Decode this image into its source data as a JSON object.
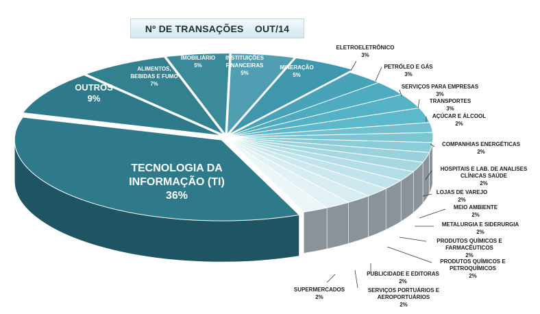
{
  "chart_data": {
    "type": "pie",
    "title": "Nº DE TRANSAÇÕES    OUT/14",
    "slices": [
      {
        "label": "TECNOLOGIA DA INFORMAÇÃO (TI)",
        "value": 36,
        "value_text": "36%"
      },
      {
        "label": "OUTROS",
        "value": 9,
        "value_text": "9%"
      },
      {
        "label": "ALIMENTOS, BEBIDAS E FUMO",
        "value": 7,
        "value_text": "7%"
      },
      {
        "label": "IMOBILIÁRIO",
        "value": 5,
        "value_text": "5%"
      },
      {
        "label": "INSTITUIÇÕES FINANCEIRAS",
        "value": 5,
        "value_text": "5%"
      },
      {
        "label": "MINERAÇÃO",
        "value": 5,
        "value_text": "5%"
      },
      {
        "label": "ELETROELETRÔNICO",
        "value": 3,
        "value_text": "3%"
      },
      {
        "label": "PETRÓLEO E GÁS",
        "value": 3,
        "value_text": "3%"
      },
      {
        "label": "SERVIÇOS PARA EMPRESAS",
        "value": 3,
        "value_text": "3%"
      },
      {
        "label": "TRANSPORTES",
        "value": 3,
        "value_text": "3%"
      },
      {
        "label": "AÇÚCAR E ÁLCOOL",
        "value": 2,
        "value_text": "2%"
      },
      {
        "label": "COMPANHIAS ENERGÉTICAS",
        "value": 2,
        "value_text": "2%"
      },
      {
        "label": "HOSPITAIS E LAB. DE ANALISES CLÍNICAS SAÚDE",
        "value": 2,
        "value_text": "2%"
      },
      {
        "label": "LOJAS DE VAREJO",
        "value": 2,
        "value_text": "2%"
      },
      {
        "label": "MEIO AMBIENTE",
        "value": 2,
        "value_text": "2%"
      },
      {
        "label": "METALURGIA E SIDERURGIA",
        "value": 2,
        "value_text": "2%"
      },
      {
        "label": "PRODUTOS QUÍMICOS E FARMACÊUTICOS",
        "value": 2,
        "value_text": "2%"
      },
      {
        "label": "PRODUTOS QUÍMICOS E PETROQUÍMICOS",
        "value": 2,
        "value_text": "2%"
      },
      {
        "label": "PUBLICIDADE E EDITORAS",
        "value": 2,
        "value_text": "2%"
      },
      {
        "label": "SERVIÇOS PORTUÁRIOS E AEROPORTUÁRIOS",
        "value": 2,
        "value_text": "2%"
      },
      {
        "label": "SUPERMERCADOS",
        "value": 2,
        "value_text": "2%"
      }
    ],
    "colors": {
      "top": [
        "#2f7a8a",
        "#2f7a8a",
        "#33808f",
        "#3a8a99",
        "#4f9eb1",
        "#3f97ad",
        "#49a3b8",
        "#4eabc0",
        "#55b2c6",
        "#5cb8cb",
        "#70c0d0",
        "#7cc6d4",
        "#8bccd9",
        "#99d2dd",
        "#a7d8e2",
        "#b4dee7",
        "#c1e3eb",
        "#cde8ef",
        "#d8edf2",
        "#e2f1f5",
        "#ebf6f9"
      ],
      "side_dark": "#1f5562",
      "side_grey": "#8a9399"
    }
  }
}
